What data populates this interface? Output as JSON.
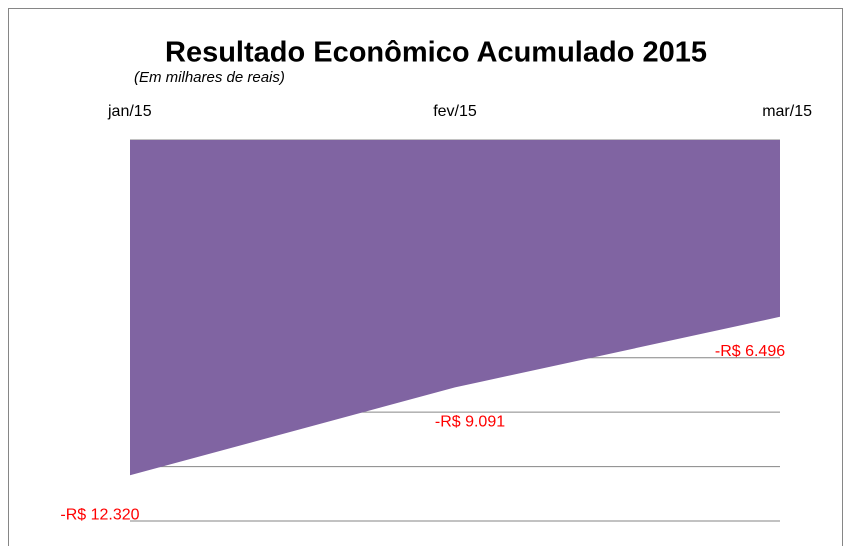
{
  "chart_data": {
    "type": "area",
    "title": "Resultado Econômico Acumulado 2015",
    "subtitle": "(Em milhares de reais)",
    "categories": [
      "jan/15",
      "fev/15",
      "mar/15"
    ],
    "values": [
      -12320,
      -9091,
      -6496
    ],
    "value_labels": [
      "-R$ 12.320",
      "-R$ 9.091",
      "-R$ 6.496"
    ],
    "color": "#8064a2",
    "label_color": "#ff0000",
    "ylim": [
      -14000,
      0
    ],
    "yticks": [
      0,
      -2000,
      -4000,
      -6000,
      -8000,
      -10000,
      -12000,
      -14000
    ],
    "grid": true
  }
}
